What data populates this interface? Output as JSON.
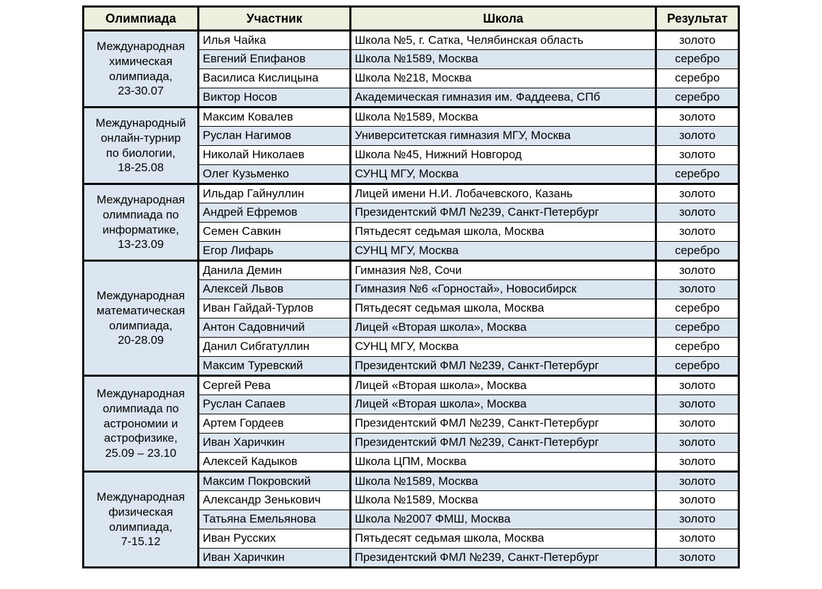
{
  "page": {
    "background": "#ffffff"
  },
  "table": {
    "columns": [
      "Олимпиада",
      "Участник",
      "Школа",
      "Результат"
    ],
    "colors": {
      "header_bg": "#ebf1de",
      "accent_row_bg": "#dce6f1",
      "plain_row_bg": "#ffffff",
      "border": "#000000",
      "text": "#000000"
    },
    "groups": [
      {
        "olympiad": "Международная\nхимическая\nолимпиада,\n23-30.07",
        "rows": [
          {
            "participant": "Илья Чайка",
            "school": "Школа №5, г. Сатка, Челябинская область",
            "result": "золото"
          },
          {
            "participant": "Евгений Епифанов",
            "school": "Школа №1589, Москва",
            "result": "серебро"
          },
          {
            "participant": "Василиса Кислицына",
            "school": "Школа №218, Москва",
            "result": "серебро"
          },
          {
            "participant": "Виктор Носов",
            "school": "Академическая гимназия им. Фаддеева, СПб",
            "result": "серебро"
          }
        ]
      },
      {
        "olympiad": "Международный\nонлайн-турнир\nпо биологии,\n18-25.08",
        "rows": [
          {
            "participant": "Максим Ковалев",
            "school": "Школа №1589, Москва",
            "result": "золото"
          },
          {
            "participant": "Руслан Нагимов",
            "school": "Университетская гимназия МГУ, Москва",
            "result": "золото"
          },
          {
            "participant": "Николай Николаев",
            "school": "Школа №45, Нижний Новгород",
            "result": "золото"
          },
          {
            "participant": "Олег Кузьменко",
            "school": "СУНЦ МГУ, Москва",
            "result": "серебро"
          }
        ]
      },
      {
        "olympiad": "Международная\nолимпиада по\nинформатике,\n13-23.09",
        "rows": [
          {
            "participant": "Ильдар Гайнуллин",
            "school": "Лицей имени Н.И. Лобачевского, Казань",
            "result": "золото"
          },
          {
            "participant": "Андрей Ефремов",
            "school": "Президентский ФМЛ №239, Санкт-Петербург",
            "result": "золото"
          },
          {
            "participant": "Семен Савкин",
            "school": "Пятьдесят седьмая школа, Москва",
            "result": "золото"
          },
          {
            "participant": "Егор Лифарь",
            "school": "СУНЦ МГУ, Москва",
            "result": "серебро"
          }
        ]
      },
      {
        "olympiad": "Международная\nматематическая\nолимпиада,\n20-28.09",
        "rows": [
          {
            "participant": "Данила Демин",
            "school": "Гимназия №8, Сочи",
            "result": "золото"
          },
          {
            "participant": "Алексей Львов",
            "school": "Гимназия №6 «Горностай», Новосибирск",
            "result": "золото"
          },
          {
            "participant": "Иван Гайдай-Турлов",
            "school": "Пятьдесят седьмая школа, Москва",
            "result": "серебро"
          },
          {
            "participant": "Антон Садовничий",
            "school": "Лицей «Вторая школа», Москва",
            "result": "серебро"
          },
          {
            "participant": "Данил Сибгатуллин",
            "school": "СУНЦ МГУ, Москва",
            "result": "серебро"
          },
          {
            "participant": "Максим Туревский",
            "school": "Президентский ФМЛ №239, Санкт-Петербург",
            "result": "серебро"
          }
        ]
      },
      {
        "olympiad": "Международная\nолимпиада по\nастрономии и\nастрофизике,\n25.09 – 23.10",
        "rows": [
          {
            "participant": "Сергей Рева",
            "school": "Лицей «Вторая школа», Москва",
            "result": "золото"
          },
          {
            "participant": "Руслан Сапаев",
            "school": "Лицей «Вторая школа», Москва",
            "result": "золото"
          },
          {
            "participant": "Артем Гордеев",
            "school": "Президентский ФМЛ №239, Санкт-Петербург",
            "result": "золото"
          },
          {
            "participant": "Иван Харичкин",
            "school": "Президентский ФМЛ №239, Санкт-Петербург",
            "result": "золото"
          },
          {
            "participant": "Алексей Кадыков",
            "school": "Школа ЦПМ, Москва",
            "result": "золото"
          }
        ]
      },
      {
        "olympiad": "Международная\nфизическая\nолимпиада,\n7-15.12",
        "rows": [
          {
            "participant": "Максим Покровский",
            "school": "Школа №1589, Москва",
            "result": "золото"
          },
          {
            "participant": "Александр Зенькович",
            "school": "Школа №1589, Москва",
            "result": "золото"
          },
          {
            "participant": "Татьяна Емельянова",
            "school": "Школа №2007 ФМШ, Москва",
            "result": "золото"
          },
          {
            "participant": "Иван Русских",
            "school": "Пятьдесят седьмая школа, Москва",
            "result": "золото"
          },
          {
            "participant": "Иван Харичкин",
            "school": "Президентский ФМЛ №239, Санкт-Петербург",
            "result": "золото"
          }
        ]
      }
    ]
  }
}
